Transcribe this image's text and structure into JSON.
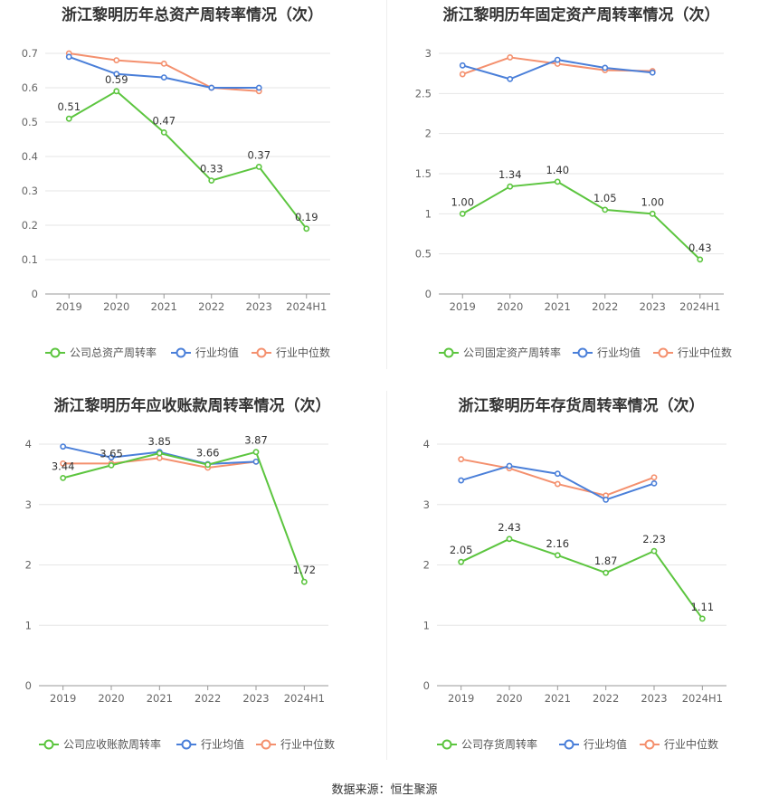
{
  "source": "数据来源：恒生聚源",
  "chart_data": [
    {
      "type": "line",
      "title": "浙江黎明历年总资产周转率情况（次）",
      "categories": [
        "2019",
        "2020",
        "2021",
        "2022",
        "2023",
        "2024H1"
      ],
      "ylim": [
        0,
        0.7
      ],
      "yticks": [
        0,
        0.1,
        0.2,
        0.3,
        0.4,
        0.5,
        0.6,
        0.7
      ],
      "ytick_labels": [
        "0",
        "0.1",
        "0.2",
        "0.3",
        "0.4",
        "0.5",
        "0.6",
        "0.7"
      ],
      "legend_position": "bottom",
      "series": [
        {
          "name": "公司总资产周转率",
          "color": "#5cc53f",
          "values": [
            0.51,
            0.59,
            0.47,
            0.33,
            0.37,
            0.19
          ],
          "labels": [
            "0.51",
            "0.59",
            "0.47",
            "0.33",
            "0.37",
            "0.19"
          ]
        },
        {
          "name": "行业均值",
          "color": "#4a7fd9",
          "values": [
            0.69,
            0.64,
            0.63,
            0.6,
            0.6,
            null
          ]
        },
        {
          "name": "行业中位数",
          "color": "#f4906e",
          "values": [
            0.7,
            0.68,
            0.67,
            0.6,
            0.59,
            null
          ]
        }
      ]
    },
    {
      "type": "line",
      "title": "浙江黎明历年固定资产周转率情况（次）",
      "categories": [
        "2019",
        "2020",
        "2021",
        "2022",
        "2023",
        "2024H1"
      ],
      "ylim": [
        0,
        3
      ],
      "yticks": [
        0,
        0.5,
        1,
        1.5,
        2,
        2.5,
        3
      ],
      "ytick_labels": [
        "0",
        "0.5",
        "1",
        "1.5",
        "2",
        "2.5",
        "3"
      ],
      "legend_position": "bottom",
      "series": [
        {
          "name": "公司固定资产周转率",
          "color": "#5cc53f",
          "values": [
            1.0,
            1.34,
            1.4,
            1.05,
            1.0,
            0.43
          ],
          "labels": [
            "1.00",
            "1.34",
            "1.40",
            "1.05",
            "1.00",
            "0.43"
          ]
        },
        {
          "name": "行业均值",
          "color": "#4a7fd9",
          "values": [
            2.85,
            2.68,
            2.92,
            2.82,
            2.76,
            null
          ]
        },
        {
          "name": "行业中位数",
          "color": "#f4906e",
          "values": [
            2.74,
            2.95,
            2.87,
            2.79,
            2.78,
            null
          ]
        }
      ]
    },
    {
      "type": "line",
      "title": "浙江黎明历年应收账款周转率情况（次）",
      "categories": [
        "2019",
        "2020",
        "2021",
        "2022",
        "2023",
        "2024H1"
      ],
      "ylim": [
        0,
        4
      ],
      "yticks": [
        0,
        1,
        2,
        3,
        4
      ],
      "ytick_labels": [
        "0",
        "1",
        "2",
        "3",
        "4"
      ],
      "legend_position": "bottom",
      "series": [
        {
          "name": "公司应收账款周转率",
          "color": "#5cc53f",
          "values": [
            3.44,
            3.65,
            3.85,
            3.66,
            3.87,
            1.72
          ],
          "labels": [
            "3.44",
            "3.65",
            "3.85",
            "3.66",
            "3.87",
            "1.72"
          ]
        },
        {
          "name": "行业均值",
          "color": "#4a7fd9",
          "values": [
            3.96,
            3.78,
            3.87,
            3.67,
            3.71,
            null
          ]
        },
        {
          "name": "行业中位数",
          "color": "#f4906e",
          "values": [
            3.68,
            3.68,
            3.77,
            3.61,
            3.71,
            null
          ]
        }
      ]
    },
    {
      "type": "line",
      "title": "浙江黎明历年存货周转率情况（次）",
      "categories": [
        "2019",
        "2020",
        "2021",
        "2022",
        "2023",
        "2024H1"
      ],
      "ylim": [
        0,
        4
      ],
      "yticks": [
        0,
        1,
        2,
        3,
        4
      ],
      "ytick_labels": [
        "0",
        "1",
        "2",
        "3",
        "4"
      ],
      "legend_position": "bottom",
      "series": [
        {
          "name": "公司存货周转率",
          "color": "#5cc53f",
          "values": [
            2.05,
            2.43,
            2.16,
            1.87,
            2.23,
            1.11
          ],
          "labels": [
            "2.05",
            "2.43",
            "2.16",
            "1.87",
            "2.23",
            "1.11"
          ]
        },
        {
          "name": "行业均值",
          "color": "#4a7fd9",
          "values": [
            3.4,
            3.64,
            3.51,
            3.08,
            3.35,
            null
          ]
        },
        {
          "name": "行业中位数",
          "color": "#f4906e",
          "values": [
            3.75,
            3.6,
            3.34,
            3.15,
            3.45,
            null
          ]
        }
      ]
    }
  ]
}
